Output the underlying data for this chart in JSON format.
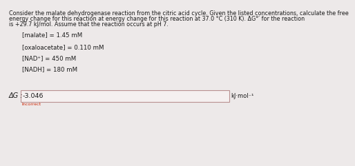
{
  "title_line1": "Consider the malate dehydrogenase reaction from the citric acid cycle. Given the listed concentrations, calculate the free",
  "title_line2": "energy change for this reaction at energy change for this reaction at 37.0 °C (310 K). ΔG°′ for the reaction",
  "title_line3": "is +29.7 kJ/mol. Assume that the reaction occurs at pH 7.",
  "concentrations": [
    "[malate] = 1.45 mM",
    "[oxaloacetate] = 0.110 mM",
    "[NAD⁺] = 450 mM",
    "[NADH] = 180 mM"
  ],
  "delta_g_label": "ΔG :",
  "answer_value": "-3.046",
  "answer_unit": "kJ·mol⁻¹",
  "incorrect_text": "Incorrect",
  "bg_color": "#ede9e9",
  "box_border_color": "#b89090",
  "box_fill_color": "#f5f0f0",
  "text_color": "#1a1a1a",
  "incorrect_color": "#cc2200",
  "title_fontsize": 5.8,
  "body_fontsize": 6.2,
  "answer_fontsize": 6.8,
  "label_fontsize": 7.0,
  "unit_fontsize": 6.0
}
